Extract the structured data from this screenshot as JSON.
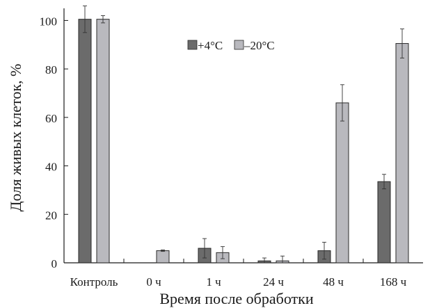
{
  "chart_data": {
    "type": "bar",
    "categories": [
      "Контроль",
      "0 ч",
      "1 ч",
      "24 ч",
      "48 ч",
      "168 ч"
    ],
    "series": [
      {
        "name": "+4°C",
        "color": "#6b6b6b",
        "values": [
          100.5,
          null,
          6,
          0.8,
          5,
          33.5
        ],
        "errors": [
          5.5,
          null,
          4,
          1.2,
          3.5,
          3
        ]
      },
      {
        "name": "–20°C",
        "color": "#b9b9be",
        "values": [
          100.5,
          5,
          4.2,
          0.8,
          66,
          90.5
        ],
        "errors": [
          1.5,
          0.3,
          2.5,
          2,
          7.5,
          6
        ]
      }
    ],
    "xlabel": "Время после обработки",
    "ylabel": "Доля живых клеток, %",
    "ylim": [
      0,
      105
    ],
    "yticks": [
      0,
      20,
      40,
      60,
      80,
      100
    ],
    "legend_position": "top-center",
    "grid": false
  }
}
